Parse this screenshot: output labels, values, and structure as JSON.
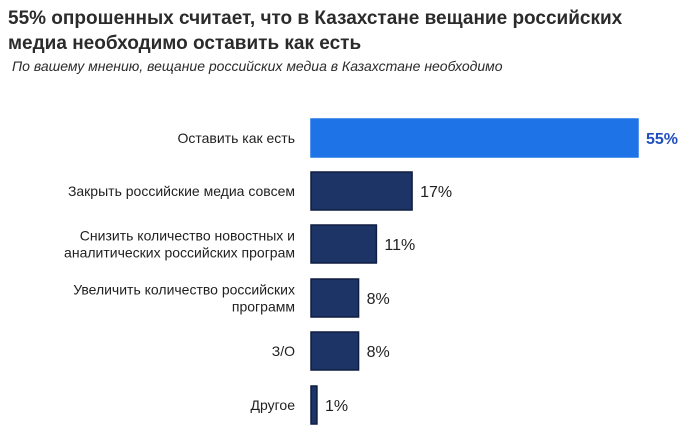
{
  "title": {
    "lead": "55%",
    "rest": " опрошенных считает, что в Казахстане вещание российских медиа необходимо оставить как есть"
  },
  "subtitle": "По вашему мнению, вещание российских медиа в Казахстане необходимо",
  "colors": {
    "highlight": "#1e74e6",
    "highlight_label": "#1f4fbf",
    "bar": "#1d3566",
    "bar_border": "#0e1d40",
    "text": "#1f1f1f"
  },
  "chart_data": {
    "type": "bar",
    "orientation": "horizontal",
    "categories": [
      "Оставить как есть",
      "Закрыть российские медиа совсем",
      "Снизить количество новостных и аналитических российских програм",
      "Увеличить количество российских программ",
      "З/О",
      "Другое"
    ],
    "values": [
      55,
      17,
      11,
      8,
      8,
      1
    ],
    "value_labels": [
      "55%",
      "17%",
      "11%",
      "8%",
      "8%",
      "1%"
    ],
    "highlight_index": 0,
    "xlim": [
      0,
      55
    ],
    "grid": false,
    "legend": "none"
  }
}
